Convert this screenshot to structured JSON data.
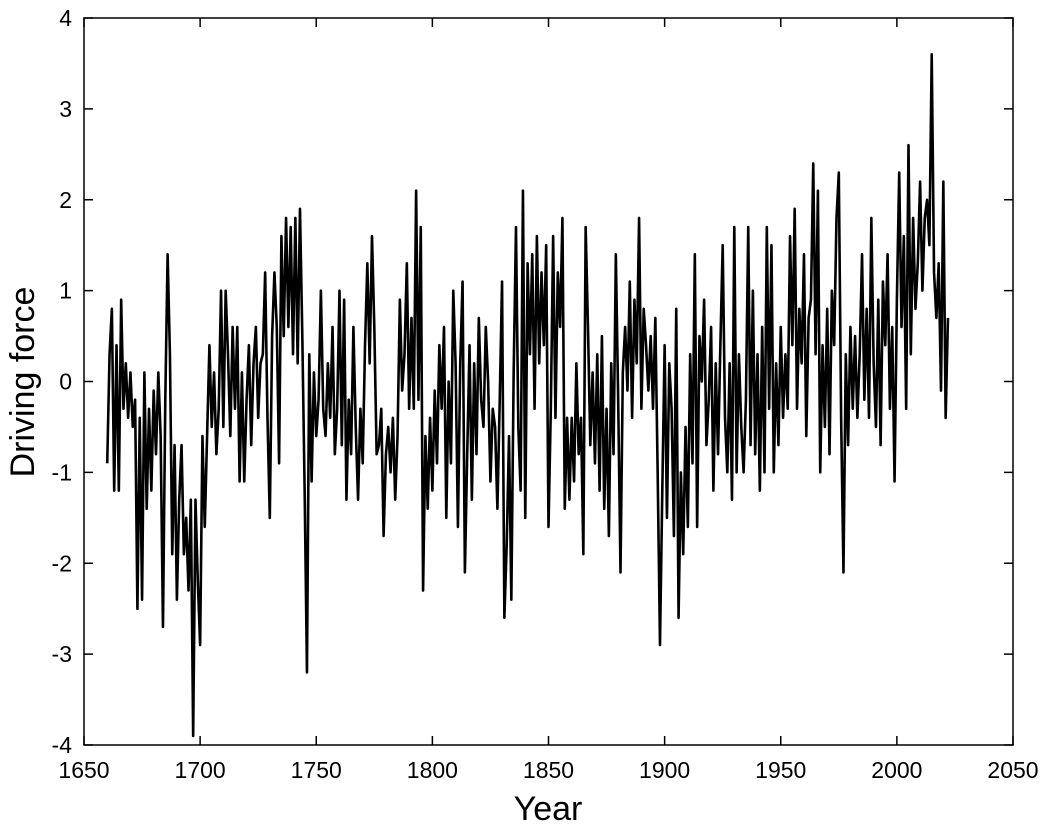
{
  "chart_data": {
    "type": "line",
    "title": "",
    "xlabel": "Year",
    "ylabel": "Driving force",
    "xlim": [
      1650,
      2050
    ],
    "ylim": [
      -4,
      4
    ],
    "xticks": [
      1650,
      1700,
      1750,
      1800,
      1850,
      1900,
      1950,
      2000,
      2050
    ],
    "yticks": [
      -4,
      -3,
      -2,
      -1,
      0,
      1,
      2,
      3,
      4
    ],
    "xtick_labels": [
      "1650",
      "1700",
      "1750",
      "1800",
      "1850",
      "1900",
      "1950",
      "2000",
      "2050"
    ],
    "ytick_labels": [
      "-4",
      "-3",
      "-2",
      "-1",
      "0",
      "1",
      "2",
      "3",
      "4"
    ],
    "grid": false,
    "line_color": "#000000",
    "series": [
      {
        "x_start": 1660,
        "x_step": 1,
        "values": [
          -0.9,
          0.3,
          0.8,
          -1.2,
          0.4,
          -1.2,
          0.9,
          -0.3,
          0.2,
          -0.4,
          0.1,
          -0.5,
          -0.2,
          -2.5,
          -0.4,
          -2.4,
          0.1,
          -1.4,
          -0.3,
          -1.2,
          -0.1,
          -0.8,
          0.1,
          -0.6,
          -2.7,
          -0.2,
          1.4,
          0.3,
          -1.9,
          -0.7,
          -2.4,
          -1.3,
          -0.7,
          -1.9,
          -1.5,
          -2.3,
          -1.3,
          -3.9,
          -1.3,
          -2.2,
          -2.9,
          -0.6,
          -1.6,
          -0.6,
          0.4,
          -0.5,
          0.1,
          -0.8,
          -0.3,
          1.0,
          -0.5,
          1.0,
          0.3,
          -0.6,
          0.6,
          -0.3,
          0.6,
          -1.1,
          0.1,
          -1.1,
          -0.2,
          0.4,
          -0.7,
          0.2,
          0.6,
          -0.4,
          0.2,
          0.3,
          1.2,
          -0.4,
          -1.5,
          0.5,
          1.2,
          0.6,
          -0.9,
          1.6,
          0.5,
          1.8,
          0.6,
          1.7,
          0.3,
          1.8,
          0.2,
          1.9,
          0.5,
          -1.2,
          -3.2,
          0.3,
          -1.1,
          0.1,
          -0.6,
          -0.2,
          1.0,
          -0.3,
          -0.6,
          0.2,
          -0.4,
          0.6,
          -0.8,
          -0.3,
          1.0,
          -0.7,
          0.9,
          -1.3,
          -0.2,
          -0.8,
          0.6,
          -0.5,
          -1.3,
          -0.3,
          -0.9,
          0.4,
          1.3,
          0.2,
          1.6,
          0.6,
          -0.8,
          -0.7,
          -0.3,
          -1.7,
          -0.8,
          -0.5,
          -1.0,
          -0.4,
          -1.3,
          -0.6,
          0.9,
          -0.1,
          0.3,
          1.3,
          -0.3,
          0.7,
          -0.3,
          2.1,
          -0.2,
          1.7,
          -2.3,
          -0.6,
          -1.4,
          -0.4,
          -1.2,
          -0.1,
          -0.9,
          0.4,
          -0.3,
          0.6,
          -1.5,
          0.0,
          -0.9,
          1.0,
          0.2,
          -1.6,
          0.2,
          1.1,
          -2.1,
          -0.8,
          0.4,
          -1.3,
          0.2,
          -0.8,
          0.7,
          -0.2,
          -0.5,
          0.6,
          0.0,
          -1.1,
          -0.3,
          -0.5,
          -1.4,
          -0.2,
          1.1,
          -2.6,
          -1.8,
          -0.6,
          -2.4,
          0.1,
          1.7,
          -0.5,
          -1.2,
          2.1,
          -1.5,
          1.3,
          0.3,
          1.4,
          -0.3,
          1.6,
          0.2,
          1.2,
          0.4,
          1.5,
          -1.6,
          -0.3,
          1.6,
          -0.4,
          1.2,
          0.6,
          1.8,
          -1.4,
          -0.4,
          -1.3,
          -0.4,
          -1.1,
          0.2,
          -0.8,
          -0.4,
          -1.9,
          1.7,
          0.6,
          -0.7,
          0.1,
          -0.9,
          0.3,
          -1.2,
          0.5,
          -1.4,
          -0.3,
          -1.7,
          0.2,
          -0.8,
          1.4,
          -0.2,
          -2.1,
          0.1,
          0.6,
          -0.1,
          1.1,
          -0.4,
          0.9,
          0.2,
          1.8,
          -0.3,
          0.8,
          0.4,
          -0.1,
          0.5,
          -0.3,
          0.7,
          -1.0,
          -2.9,
          -1.2,
          0.4,
          -1.5,
          0.2,
          -0.3,
          -1.7,
          0.8,
          -2.6,
          -1.0,
          -1.9,
          -0.5,
          -1.6,
          0.3,
          -0.9,
          1.4,
          -1.6,
          0.5,
          0.0,
          0.9,
          -0.7,
          -0.2,
          0.6,
          -1.2,
          0.2,
          -0.8,
          0.4,
          1.5,
          -0.4,
          -1.0,
          0.2,
          -1.3,
          1.7,
          -1.0,
          0.3,
          -0.5,
          -1.0,
          -0.2,
          1.7,
          -0.7,
          1.0,
          -0.8,
          0.3,
          -1.2,
          0.6,
          -1.0,
          1.7,
          -0.3,
          1.5,
          -1.0,
          0.2,
          -0.7,
          0.6,
          -0.4,
          0.3,
          -0.3,
          1.6,
          0.4,
          1.9,
          -0.3,
          0.8,
          0.2,
          1.4,
          -0.6,
          0.7,
          0.9,
          2.4,
          0.3,
          2.1,
          -1.0,
          0.4,
          -0.5,
          0.8,
          -0.8,
          1.0,
          0.4,
          1.8,
          2.3,
          -0.4,
          -2.1,
          0.3,
          -0.7,
          0.6,
          -0.3,
          0.5,
          -0.4,
          0.3,
          1.4,
          -0.2,
          0.8,
          -0.4,
          1.8,
          0.2,
          -0.5,
          0.9,
          -0.7,
          1.1,
          0.4,
          1.4,
          -0.3,
          0.6,
          -1.1,
          0.9,
          2.3,
          0.6,
          1.6,
          -0.3,
          2.6,
          0.3,
          1.8,
          0.8,
          1.3,
          2.2,
          1.0,
          1.8,
          2.0,
          1.5,
          3.6,
          1.2,
          0.7,
          1.3,
          -0.1,
          2.2,
          -0.4,
          0.7
        ]
      }
    ]
  }
}
